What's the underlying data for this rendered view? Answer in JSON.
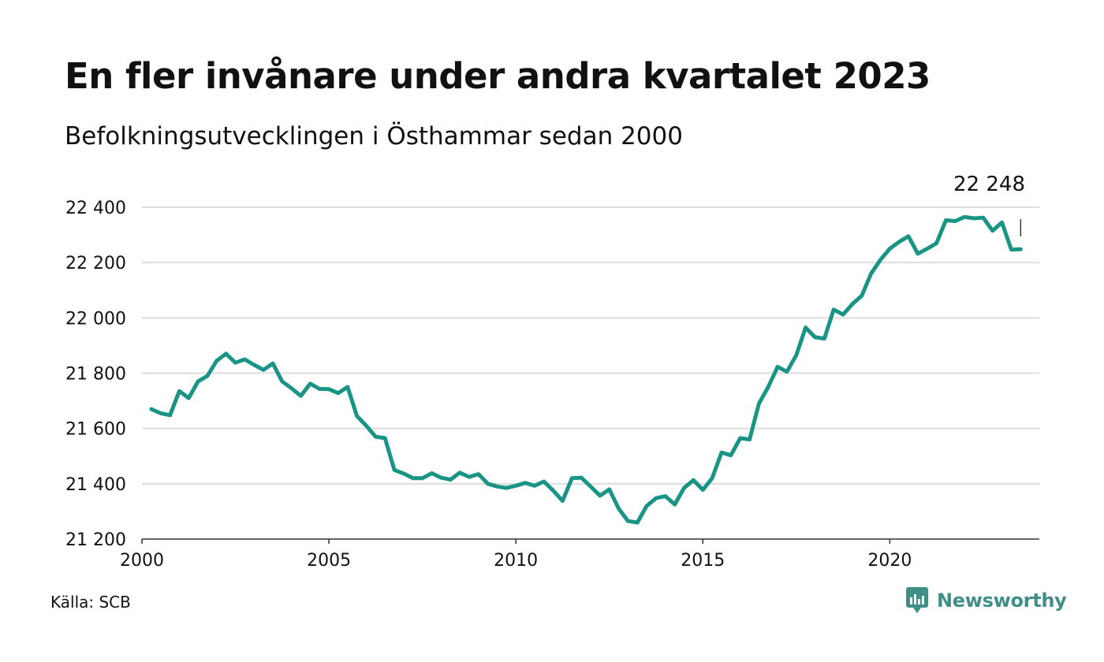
{
  "title": "En fler invånare under andra kvartalet 2023",
  "subtitle": "Befolkningsutvecklingen i Östhammar sedan 2000",
  "source": "Källa: SCB",
  "brand": {
    "name": "Newsworthy",
    "color": "#3f8f86"
  },
  "chart_data": {
    "type": "line",
    "line_color": "#1a9485",
    "grid": true,
    "ylim": [
      21200,
      22400
    ],
    "yticks": [
      {
        "value": 21200,
        "label": "21 200"
      },
      {
        "value": 21400,
        "label": "21 400"
      },
      {
        "value": 21600,
        "label": "21 600"
      },
      {
        "value": 21800,
        "label": "21 800"
      },
      {
        "value": 22000,
        "label": "22 000"
      },
      {
        "value": 22200,
        "label": "22 200"
      },
      {
        "value": 22400,
        "label": "22 400"
      }
    ],
    "xlim": [
      2000,
      2024
    ],
    "xticks": [
      {
        "value": 2000,
        "label": "2000"
      },
      {
        "value": 2005,
        "label": "2005"
      },
      {
        "value": 2010,
        "label": "2010"
      },
      {
        "value": 2015,
        "label": "2015"
      },
      {
        "value": 2020,
        "label": "2020"
      }
    ],
    "end_label": "22 248",
    "series": [
      {
        "x": [
          2000.25,
          2000.5,
          2000.75,
          2001.0,
          2001.25,
          2001.5,
          2001.75,
          2002.0,
          2002.25,
          2002.5,
          2002.75,
          2003.0,
          2003.25,
          2003.5,
          2003.75,
          2004.0,
          2004.25,
          2004.5,
          2004.75,
          2005.0,
          2005.25,
          2005.5,
          2005.75,
          2006.0,
          2006.25,
          2006.5,
          2006.75,
          2007.0,
          2007.25,
          2007.5,
          2007.75,
          2008.0,
          2008.25,
          2008.5,
          2008.75,
          2009.0,
          2009.25,
          2009.5,
          2009.75,
          2010.0,
          2010.25,
          2010.5,
          2010.75,
          2011.0,
          2011.25,
          2011.5,
          2011.75,
          2012.0,
          2012.25,
          2012.5,
          2012.75,
          2013.0,
          2013.25,
          2013.5,
          2013.75,
          2014.0,
          2014.25,
          2014.5,
          2014.75,
          2015.0,
          2015.25,
          2015.5,
          2015.75,
          2016.0,
          2016.25,
          2016.5,
          2016.75,
          2017.0,
          2017.25,
          2017.5,
          2017.75,
          2018.0,
          2018.25,
          2018.5,
          2018.75,
          2019.0,
          2019.25,
          2019.5,
          2019.75,
          2020.0,
          2020.25,
          2020.5,
          2020.75,
          2021.0,
          2021.25,
          2021.5,
          2021.75,
          2022.0,
          2022.25,
          2022.5,
          2022.75,
          2023.0,
          2023.25,
          2023.5
        ],
        "values": [
          21670,
          21655,
          21648,
          21735,
          21710,
          21770,
          21790,
          21845,
          21870,
          21838,
          21850,
          21830,
          21812,
          21835,
          21770,
          21745,
          21718,
          21762,
          21743,
          21742,
          21728,
          21750,
          21645,
          21610,
          21570,
          21565,
          21450,
          21437,
          21420,
          21420,
          21438,
          21422,
          21415,
          21440,
          21425,
          21435,
          21400,
          21390,
          21385,
          21393,
          21403,
          21393,
          21408,
          21375,
          21338,
          21420,
          21422,
          21390,
          21357,
          21380,
          21310,
          21265,
          21260,
          21320,
          21348,
          21355,
          21325,
          21385,
          21413,
          21378,
          21420,
          21513,
          21503,
          21565,
          21560,
          21690,
          21750,
          21823,
          21805,
          21865,
          21965,
          21930,
          21925,
          22030,
          22012,
          22050,
          22080,
          22160,
          22210,
          22250,
          22275,
          22295,
          22232,
          22250,
          22270,
          22353,
          22350,
          22365,
          22360,
          22362,
          22315,
          22345,
          22247,
          22248
        ]
      }
    ]
  }
}
